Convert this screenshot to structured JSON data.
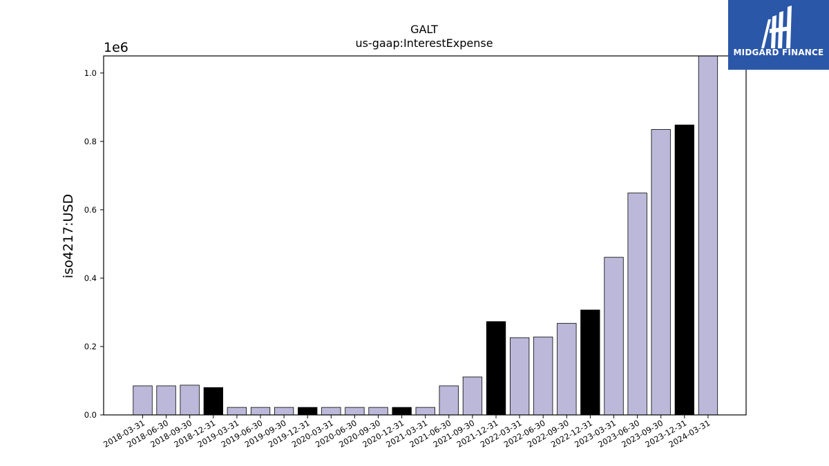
{
  "chart_data": {
    "type": "bar",
    "title": "GALT",
    "subtitle": "us-gaap:InterestExpense",
    "ylabel": "iso4217:USD",
    "y_multiplier_label": "1e6",
    "ylim": [
      0,
      1.05
    ],
    "yticks": [
      "0.0",
      "0.2",
      "0.4",
      "0.6",
      "0.8",
      "1.0"
    ],
    "grid": false,
    "colors": {
      "quarter": "#bcb8d9",
      "year_end": "#000000",
      "edge": "#000000"
    },
    "categories": [
      "2018-03-31",
      "2018-06-30",
      "2018-09-30",
      "2018-12-31",
      "2019-03-31",
      "2019-06-30",
      "2019-09-30",
      "2019-12-31",
      "2020-03-31",
      "2020-06-30",
      "2020-09-30",
      "2020-12-31",
      "2021-03-31",
      "2021-06-30",
      "2021-09-30",
      "2021-12-31",
      "2022-03-31",
      "2022-06-30",
      "2022-09-30",
      "2022-12-31",
      "2023-03-31",
      "2023-06-30",
      "2023-09-30",
      "2023-12-31",
      "2024-03-31"
    ],
    "values": [
      0.085,
      0.085,
      0.087,
      0.08,
      0.022,
      0.022,
      0.022,
      0.022,
      0.022,
      0.022,
      0.022,
      0.022,
      0.022,
      0.085,
      0.111,
      0.273,
      0.226,
      0.228,
      0.268,
      0.307,
      0.461,
      0.649,
      0.835,
      0.848,
      1.055
    ],
    "highlighted_year_end": [
      false,
      false,
      false,
      true,
      false,
      false,
      false,
      true,
      false,
      false,
      false,
      true,
      false,
      false,
      false,
      true,
      false,
      false,
      false,
      true,
      false,
      false,
      false,
      true,
      false
    ]
  },
  "logo": {
    "text": "MIDGARD FINANCE",
    "icon": "midgard-logo-icon"
  }
}
